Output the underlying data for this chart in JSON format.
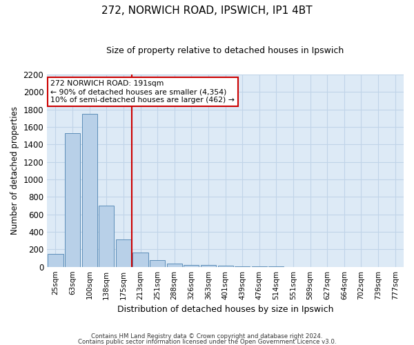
{
  "title1": "272, NORWICH ROAD, IPSWICH, IP1 4BT",
  "title2": "Size of property relative to detached houses in Ipswich",
  "xlabel": "Distribution of detached houses by size in Ipswich",
  "ylabel": "Number of detached properties",
  "categories": [
    "25sqm",
    "63sqm",
    "100sqm",
    "138sqm",
    "175sqm",
    "213sqm",
    "251sqm",
    "288sqm",
    "326sqm",
    "363sqm",
    "401sqm",
    "439sqm",
    "476sqm",
    "514sqm",
    "551sqm",
    "589sqm",
    "627sqm",
    "664sqm",
    "702sqm",
    "739sqm",
    "777sqm"
  ],
  "values": [
    150,
    1530,
    1750,
    700,
    310,
    160,
    80,
    40,
    25,
    20,
    10,
    5,
    3,
    2,
    1,
    1,
    0,
    0,
    0,
    0,
    0
  ],
  "bar_color": "#b8d0e8",
  "bar_edge_color": "#5b8db8",
  "vline_color": "#cc0000",
  "vline_x_idx": 4.5,
  "annotation_line1": "272 NORWICH ROAD: 191sqm",
  "annotation_line2": "← 90% of detached houses are smaller (4,354)",
  "annotation_line3": "10% of semi-detached houses are larger (462) →",
  "annotation_box_color": "white",
  "annotation_box_edge_color": "#cc0000",
  "ylim": [
    0,
    2200
  ],
  "yticks": [
    0,
    200,
    400,
    600,
    800,
    1000,
    1200,
    1400,
    1600,
    1800,
    2000,
    2200
  ],
  "footer1": "Contains HM Land Registry data © Crown copyright and database right 2024.",
  "footer2": "Contains public sector information licensed under the Open Government Licence v3.0.",
  "grid_color": "#c0d4e8",
  "background_color": "#ddeaf6"
}
